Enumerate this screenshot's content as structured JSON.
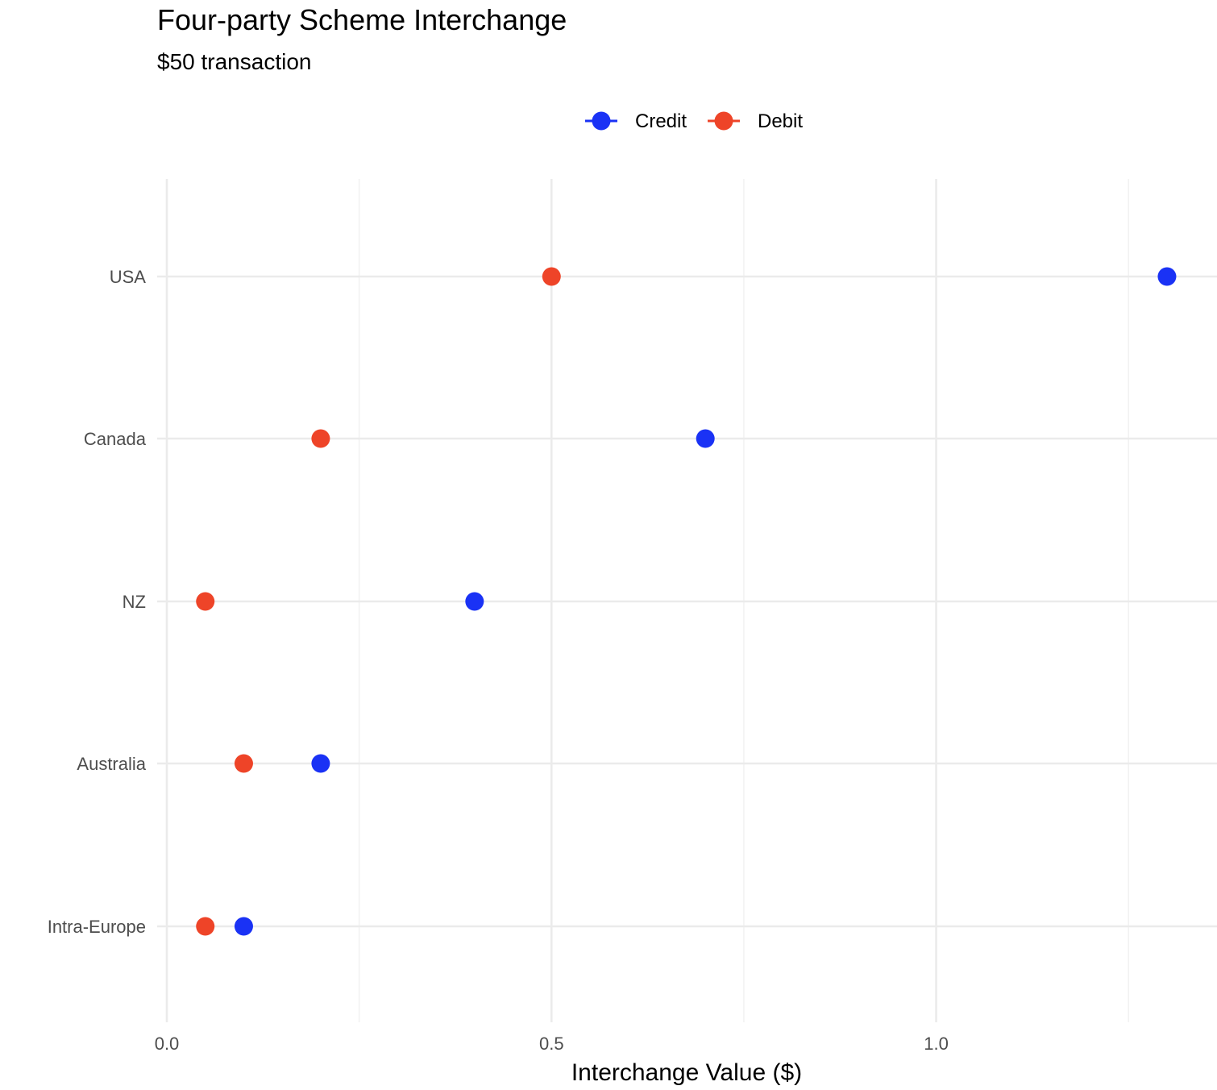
{
  "chart_data": {
    "type": "scatter",
    "title": "Four-party Scheme Interchange",
    "subtitle": "$50 transaction",
    "xlabel": "Interchange Value ($)",
    "ylabel": "",
    "xlim": [
      0,
      1.365
    ],
    "x_ticks": [
      0.0,
      0.5,
      1.0
    ],
    "x_tick_labels": [
      "0.0",
      "0.5",
      "1.0"
    ],
    "x_minor_ticks": [
      0.25,
      0.75,
      1.25
    ],
    "categories": [
      "USA",
      "Canada",
      "NZ",
      "Australia",
      "Intra-Europe"
    ],
    "series": [
      {
        "name": "Credit",
        "color": "#1a32f5",
        "values": [
          1.3,
          0.7,
          0.4,
          0.2,
          0.1
        ]
      },
      {
        "name": "Debit",
        "color": "#ee4428",
        "values": [
          0.5,
          0.2,
          0.05,
          0.1,
          0.05
        ]
      }
    ],
    "legend_position": "top",
    "grid": true
  }
}
